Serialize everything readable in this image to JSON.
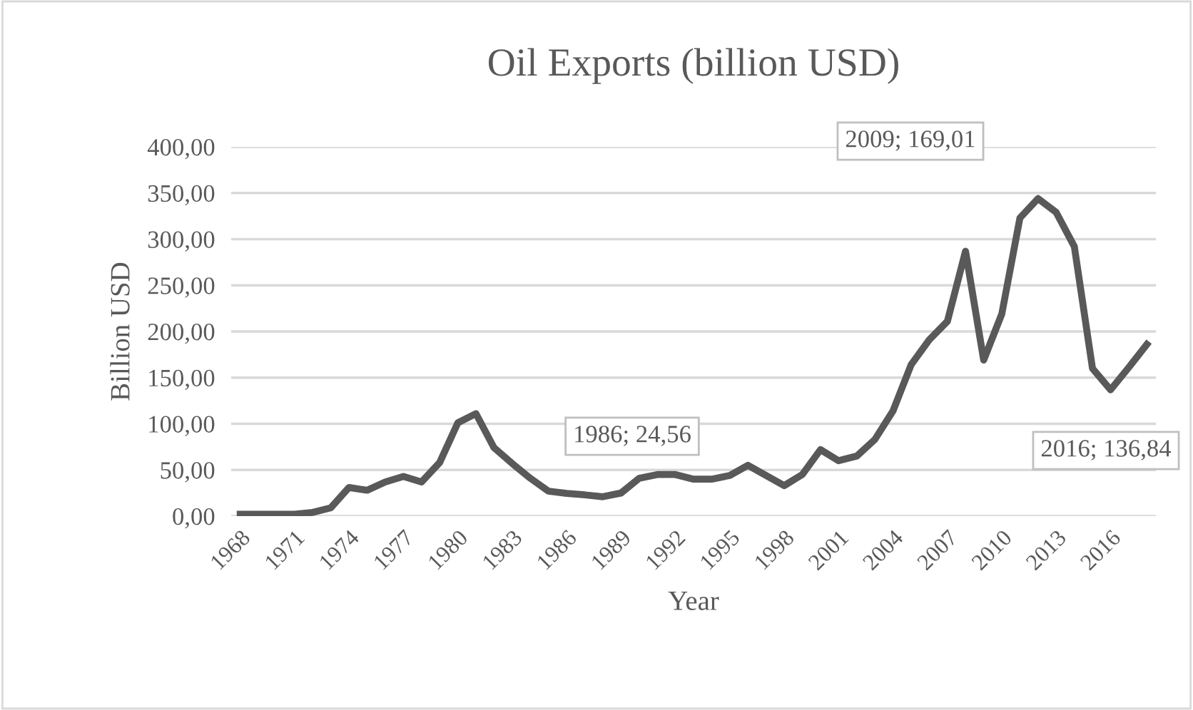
{
  "chart_data": {
    "type": "line",
    "title": "Oil Exports (billion USD)",
    "xlabel": "Year",
    "ylabel": "Billion USD",
    "categories": [
      "1968",
      null,
      null,
      "1971",
      null,
      null,
      "1974",
      null,
      null,
      "1977",
      null,
      null,
      "1980",
      null,
      null,
      "1983",
      null,
      null,
      "1986",
      null,
      null,
      "1989",
      null,
      null,
      "1992",
      null,
      null,
      "1995",
      null,
      null,
      "1998",
      null,
      null,
      "2001",
      null,
      null,
      "2004",
      null,
      null,
      "2007",
      null,
      null,
      "2010",
      null,
      null,
      "2013",
      null,
      null,
      "2016",
      null,
      null
    ],
    "series": [
      {
        "color": "#595959",
        "values": [
          2,
          2,
          2,
          2,
          4,
          9,
          31,
          28,
          37,
          43,
          37,
          58,
          101,
          111,
          74,
          57,
          41,
          27,
          24.56,
          23,
          21,
          25,
          41,
          45,
          45,
          40,
          40,
          44,
          55,
          44,
          33,
          45,
          72,
          60,
          65,
          83,
          114,
          164,
          191,
          211,
          287,
          169.01,
          219,
          323,
          344,
          329,
          292,
          160,
          136.84,
          161,
          186
        ]
      }
    ],
    "ylim": [
      0,
      400
    ],
    "yticks": [
      {
        "value": 0,
        "label": "0,00"
      },
      {
        "value": 50,
        "label": "50,00"
      },
      {
        "value": 100,
        "label": "100,00"
      },
      {
        "value": 150,
        "label": "150,00"
      },
      {
        "value": 200,
        "label": "200,00"
      },
      {
        "value": 250,
        "label": "250,00"
      },
      {
        "value": 300,
        "label": "300,00"
      },
      {
        "value": 350,
        "label": "350,00"
      },
      {
        "value": 400,
        "label": "400,00"
      }
    ],
    "annotations": [
      "1986; 24,56",
      "2009; 169,01",
      "2016; 136,84"
    ],
    "grid": "y",
    "legend": false,
    "marker": "none",
    "line_style": "solid"
  }
}
